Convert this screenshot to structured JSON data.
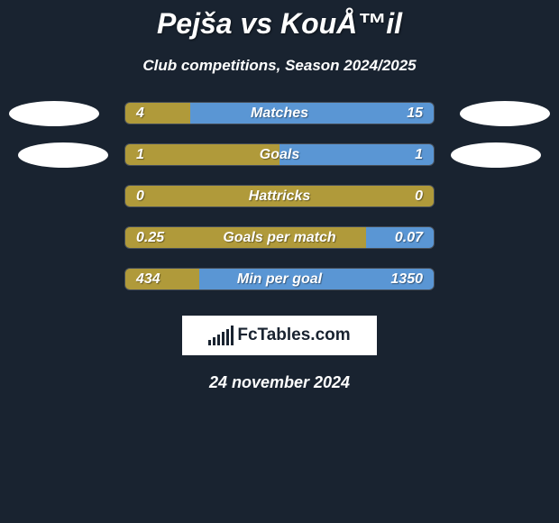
{
  "title": "Pejša vs KouÅ™il",
  "subtitle": "Club competitions, Season 2024/2025",
  "colors": {
    "background": "#192330",
    "text": "#ffffff",
    "bar_left": "#b09a3a",
    "bar_right": "#5a96d4",
    "bar_track": "#6b6b6b",
    "ellipse": "#ffffff",
    "logo_bg": "#ffffff",
    "logo_fg": "#192330"
  },
  "stats": [
    {
      "label": "Matches",
      "left_val": "4",
      "right_val": "15",
      "left_pct": 21,
      "right_pct": 79,
      "show_ellipses": true,
      "ellipse_class": ""
    },
    {
      "label": "Goals",
      "left_val": "1",
      "right_val": "1",
      "left_pct": 50,
      "right_pct": 50,
      "show_ellipses": true,
      "ellipse_class": "row2"
    },
    {
      "label": "Hattricks",
      "left_val": "0",
      "right_val": "0",
      "left_pct": 100,
      "right_pct": 0,
      "show_ellipses": false,
      "ellipse_class": ""
    },
    {
      "label": "Goals per match",
      "left_val": "0.25",
      "right_val": "0.07",
      "left_pct": 78,
      "right_pct": 22,
      "show_ellipses": false,
      "ellipse_class": ""
    },
    {
      "label": "Min per goal",
      "left_val": "434",
      "right_val": "1350",
      "left_pct": 24,
      "right_pct": 76,
      "show_ellipses": false,
      "ellipse_class": ""
    }
  ],
  "logo_text": "FcTables.com",
  "logo_bar_heights": [
    6,
    9,
    12,
    15,
    18,
    22
  ],
  "date": "24 november 2024"
}
